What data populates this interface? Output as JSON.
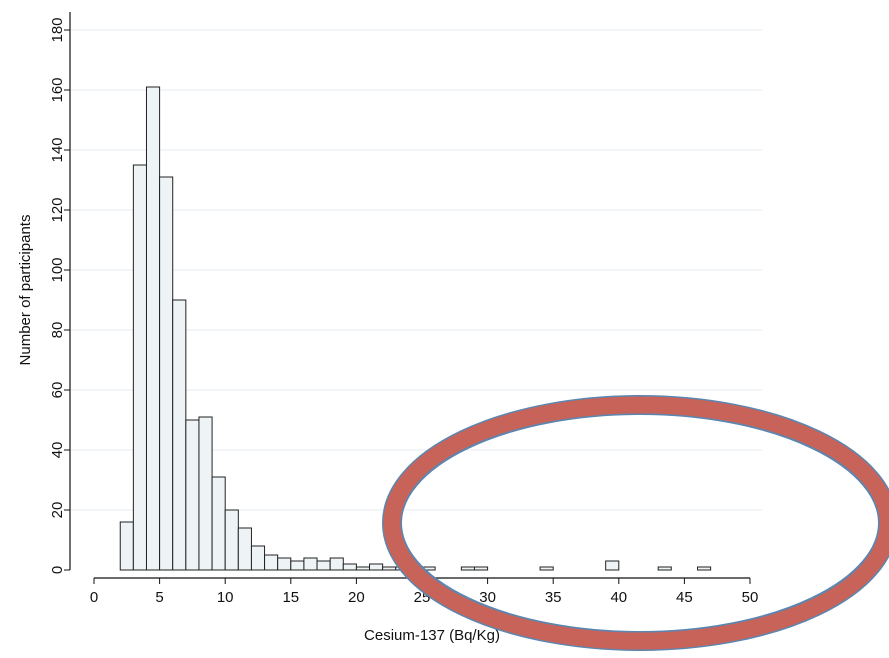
{
  "chart_data": {
    "type": "bar",
    "xlabel": "Cesium-137 (Bq/Kg)",
    "ylabel": "Number of participants",
    "xlim": [
      0,
      50
    ],
    "ylim": [
      0,
      180
    ],
    "x_ticks": [
      0,
      5,
      10,
      15,
      20,
      25,
      30,
      35,
      40,
      45,
      50
    ],
    "y_ticks": [
      0,
      20,
      40,
      60,
      80,
      100,
      120,
      140,
      160,
      180
    ],
    "grid": "horizontal",
    "bin_width": 1,
    "bins": [
      {
        "x": 2.5,
        "count": 16
      },
      {
        "x": 3.5,
        "count": 135
      },
      {
        "x": 4.5,
        "count": 161
      },
      {
        "x": 5.5,
        "count": 131
      },
      {
        "x": 6.5,
        "count": 90
      },
      {
        "x": 7.5,
        "count": 50
      },
      {
        "x": 8.5,
        "count": 51
      },
      {
        "x": 9.5,
        "count": 31
      },
      {
        "x": 10.5,
        "count": 20
      },
      {
        "x": 11.5,
        "count": 14
      },
      {
        "x": 12.5,
        "count": 8
      },
      {
        "x": 13.5,
        "count": 5
      },
      {
        "x": 14.5,
        "count": 4
      },
      {
        "x": 15.5,
        "count": 3
      },
      {
        "x": 16.5,
        "count": 4
      },
      {
        "x": 17.5,
        "count": 3
      },
      {
        "x": 18.5,
        "count": 4
      },
      {
        "x": 19.5,
        "count": 2
      },
      {
        "x": 20.5,
        "count": 1
      },
      {
        "x": 21.5,
        "count": 2
      },
      {
        "x": 22.5,
        "count": 1
      },
      {
        "x": 23.5,
        "count": 1
      },
      {
        "x": 24.5,
        "count": 1
      },
      {
        "x": 25.5,
        "count": 1
      },
      {
        "x": 28.5,
        "count": 1
      },
      {
        "x": 29.5,
        "count": 1
      },
      {
        "x": 34.5,
        "count": 1
      },
      {
        "x": 39.5,
        "count": 3
      },
      {
        "x": 43.5,
        "count": 1
      },
      {
        "x": 46.5,
        "count": 1
      }
    ],
    "colors": {
      "bar_fill": "#eef4f6",
      "bar_stroke": "#222222",
      "grid": "#e6eef0",
      "highlight_ellipse": "#c8635a",
      "highlight_ellipse_outline": "#5b86b0"
    }
  }
}
